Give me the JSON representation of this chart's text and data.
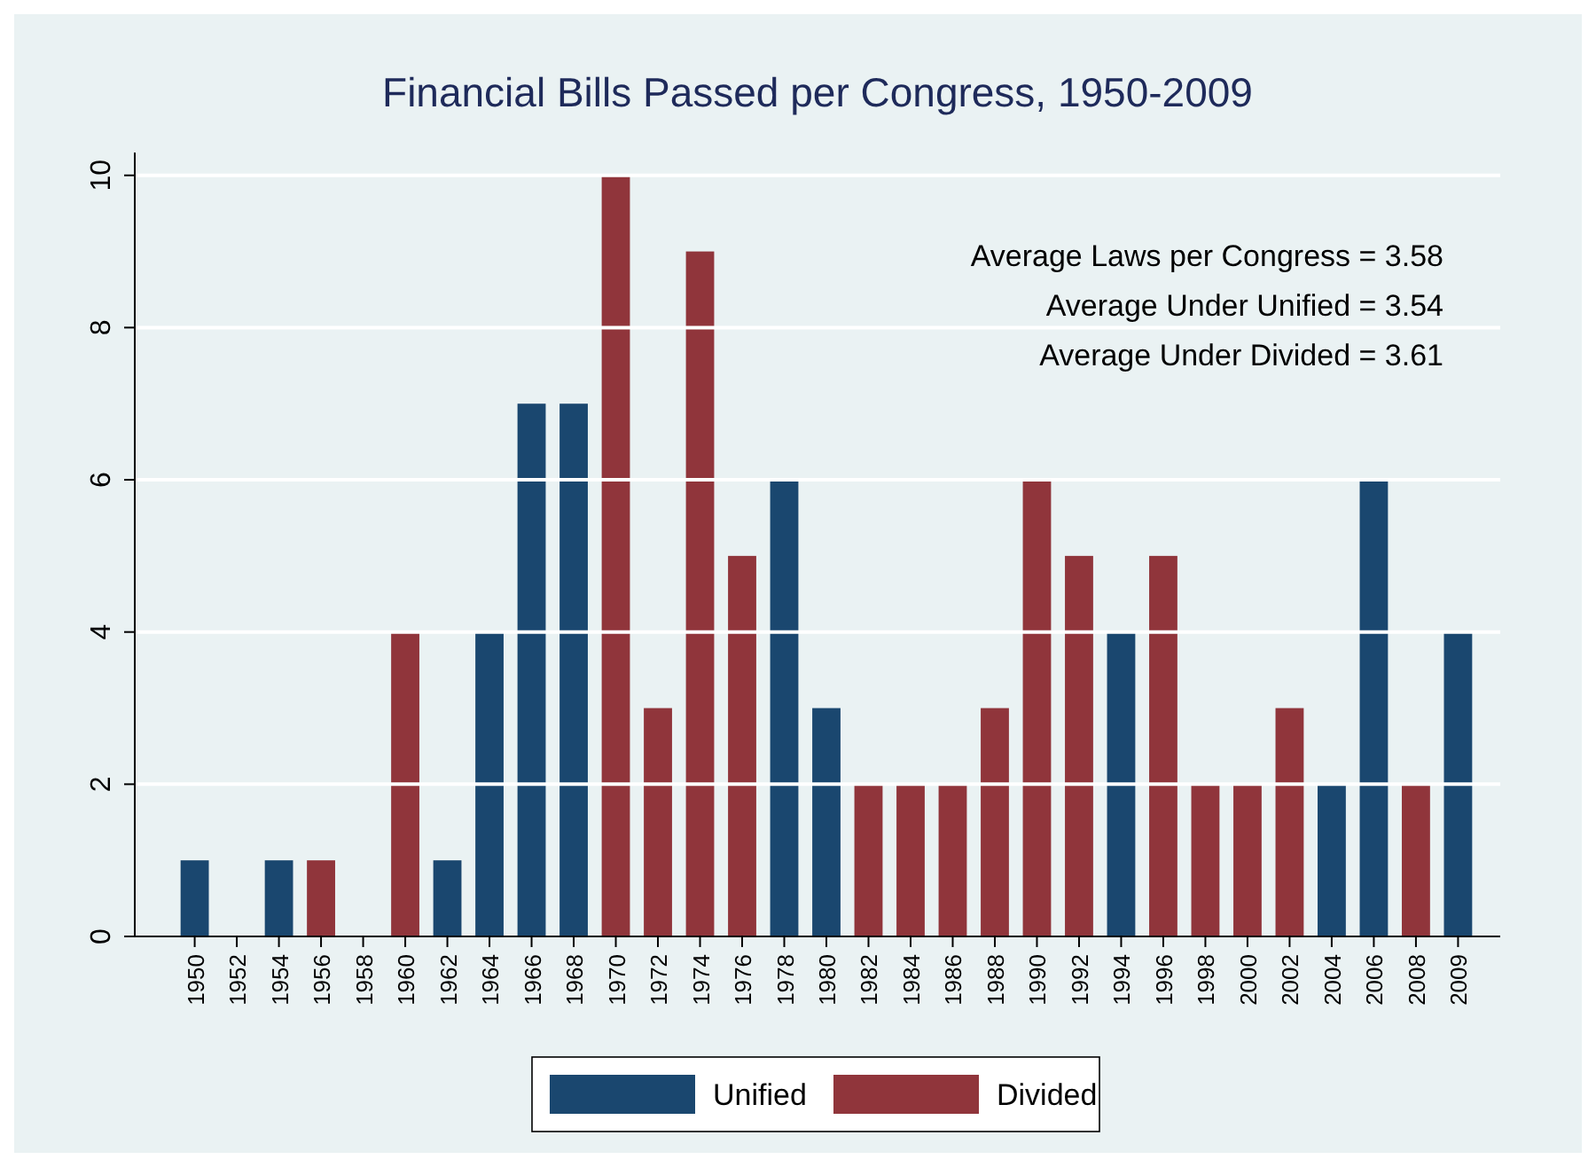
{
  "chart_data": {
    "type": "bar",
    "title": "Financial Bills Passed per Congress, 1950-2009",
    "categories": [
      "1950",
      "1952",
      "1954",
      "1956",
      "1958",
      "1960",
      "1962",
      "1964",
      "1966",
      "1968",
      "1970",
      "1972",
      "1974",
      "1976",
      "1978",
      "1980",
      "1982",
      "1984",
      "1986",
      "1988",
      "1990",
      "1992",
      "1994",
      "1996",
      "1998",
      "2000",
      "2002",
      "2004",
      "2006",
      "2008",
      "2009"
    ],
    "series": [
      {
        "name": "Unified",
        "color": "#1a476f",
        "values": [
          1,
          null,
          1,
          null,
          null,
          null,
          1,
          4,
          7,
          7,
          null,
          null,
          null,
          null,
          6,
          3,
          null,
          null,
          null,
          null,
          null,
          null,
          4,
          null,
          null,
          null,
          null,
          2,
          6,
          null,
          4
        ]
      },
      {
        "name": "Divided",
        "color": "#90353b",
        "values": [
          null,
          null,
          null,
          1,
          null,
          4,
          null,
          null,
          null,
          null,
          10,
          3,
          9,
          5,
          null,
          null,
          2,
          2,
          2,
          3,
          6,
          5,
          null,
          5,
          2,
          2,
          3,
          null,
          null,
          2,
          null
        ]
      }
    ],
    "ylim": [
      0,
      10.3
    ],
    "yticks": [
      0,
      2,
      4,
      6,
      8,
      10
    ],
    "grid": "y",
    "legend": "bottom",
    "annotations": [
      "Average Laws per Congress = 3.58",
      "Average Under Unified = 3.54",
      "Average Under Divided = 3.61"
    ]
  }
}
